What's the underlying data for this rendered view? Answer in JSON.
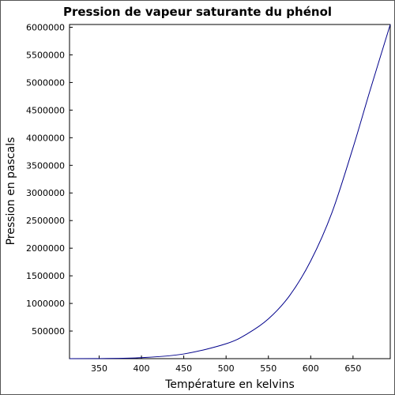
{
  "chart_data": {
    "type": "line",
    "title": "Pression de vapeur saturante du phénol",
    "xlabel": "Température en kelvins",
    "ylabel": "Pression en pascals",
    "xlim": [
      315,
      694
    ],
    "ylim": [
      0,
      6050000
    ],
    "x_ticks": [
      350,
      400,
      450,
      500,
      550,
      600,
      650
    ],
    "y_ticks": [
      500000,
      1000000,
      1500000,
      2000000,
      2500000,
      3000000,
      3500000,
      4000000,
      4500000,
      5000000,
      5500000,
      6000000
    ],
    "grid": false,
    "series": [
      {
        "color": "#00008b",
        "x": [
          315,
          350,
          400,
          450,
          500,
          525,
          550,
          575,
          600,
          625,
          650,
          670,
          694
        ],
        "y": [
          0,
          2000,
          18000,
          85000,
          270000,
          450000,
          720000,
          1140000,
          1770000,
          2640000,
          3820000,
          4850000,
          6050000
        ]
      }
    ]
  }
}
